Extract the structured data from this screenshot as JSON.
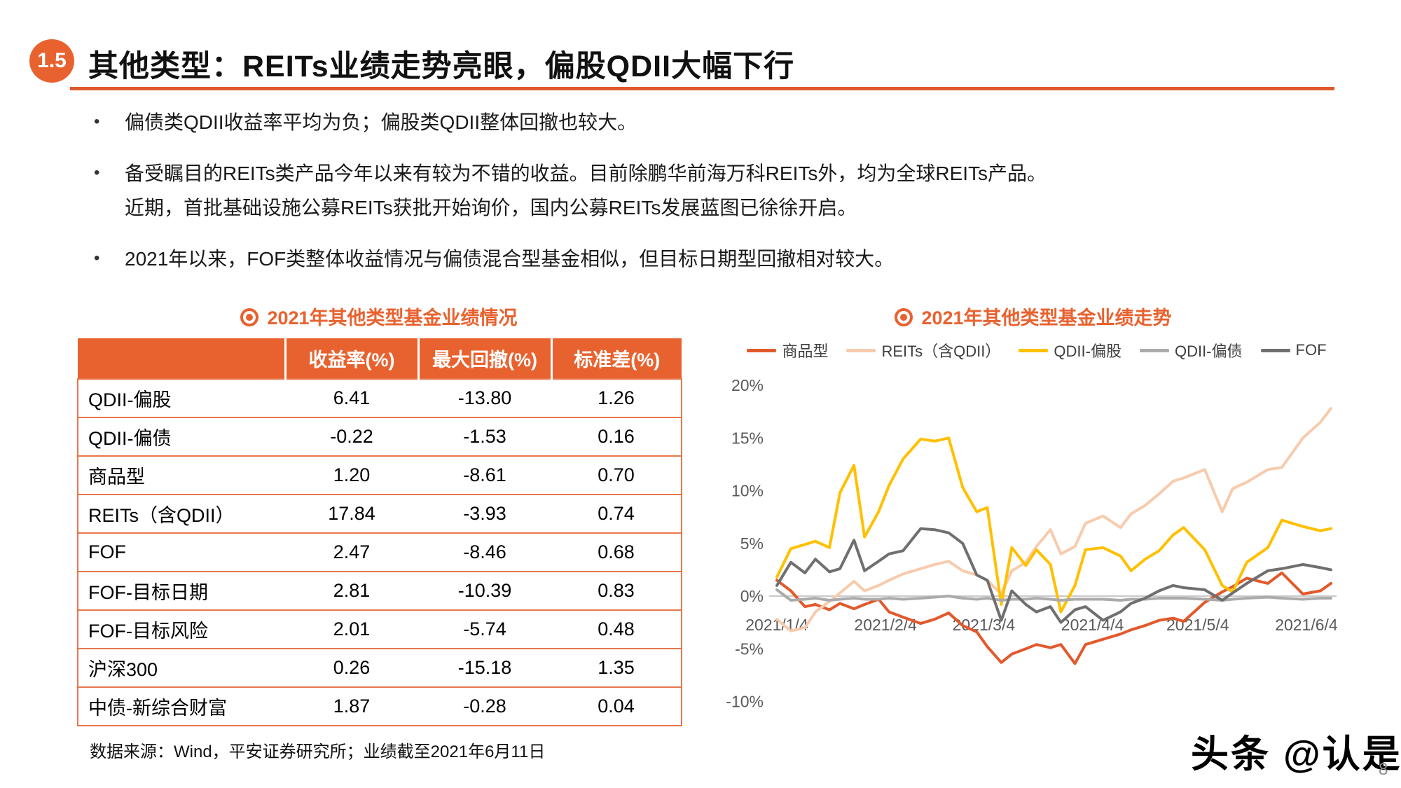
{
  "header": {
    "badge": "1.5",
    "title": "其他类型：REITs业绩走势亮眼，偏股QDII大幅下行"
  },
  "bullets": [
    "偏债类QDII收益率平均为负；偏股类QDII整体回撤也较大。",
    "备受瞩目的REITs类产品今年以来有较为不错的收益。目前除鹏华前海万科REITs外，均为全球REITs产品。近期，首批基础设施公募REITs获批开始询价，国内公募REITs发展蓝图已徐徐开启。",
    "2021年以来，FOF类整体收益情况与偏债混合型基金相似，但目标日期型回撤相对较大。"
  ],
  "table": {
    "title": "2021年其他类型基金业绩情况",
    "columns": [
      "",
      "收益率(%)",
      "最大回撤(%)",
      "标准差(%)"
    ],
    "rows": [
      {
        "label": "QDII-偏股",
        "indent": false,
        "values": [
          "6.41",
          "-13.80",
          "1.26"
        ]
      },
      {
        "label": "QDII-偏债",
        "indent": false,
        "values": [
          "-0.22",
          "-1.53",
          "0.16"
        ]
      },
      {
        "label": "商品型",
        "indent": false,
        "values": [
          "1.20",
          "-8.61",
          "0.70"
        ]
      },
      {
        "label": "REITs（含QDII）",
        "indent": false,
        "values": [
          "17.84",
          "-3.93",
          "0.74"
        ]
      },
      {
        "label": "FOF",
        "indent": false,
        "values": [
          "2.47",
          "-8.46",
          "0.68"
        ]
      },
      {
        "label": "FOF-目标日期",
        "indent": true,
        "values": [
          "2.81",
          "-10.39",
          "0.83"
        ]
      },
      {
        "label": "FOF-目标风险",
        "indent": true,
        "values": [
          "2.01",
          "-5.74",
          "0.48"
        ]
      },
      {
        "label": "沪深300",
        "indent": false,
        "values": [
          "0.26",
          "-15.18",
          "1.35"
        ]
      },
      {
        "label": "中债-新综合财富",
        "indent": false,
        "values": [
          "1.87",
          "-0.28",
          "0.04"
        ]
      }
    ]
  },
  "source_note": "数据来源：Wind，平安证券研究所；业绩截至2021年6月11日",
  "chart_data": {
    "type": "line",
    "title": "2021年其他类型基金业绩走势",
    "x": [
      "1/4",
      "1/8",
      "1/12",
      "1/15",
      "1/19",
      "1/22",
      "1/26",
      "1/29",
      "2/2",
      "2/5",
      "2/9",
      "2/14",
      "2/18",
      "2/22",
      "2/26",
      "3/2",
      "3/5",
      "3/9",
      "3/12",
      "3/16",
      "3/19",
      "3/23",
      "3/26",
      "3/30",
      "4/2",
      "4/7",
      "4/12",
      "4/15",
      "4/19",
      "4/23",
      "4/27",
      "4/30",
      "5/6",
      "5/11",
      "5/14",
      "5/18",
      "5/24",
      "5/28",
      "6/3",
      "6/8",
      "6/11"
    ],
    "series": [
      {
        "name": "商品型",
        "color": "#e2592c",
        "values": [
          1.5,
          0.5,
          -1.0,
          -0.8,
          -1.3,
          -0.7,
          -1.2,
          -0.8,
          -0.3,
          -1.5,
          -2.0,
          -2.6,
          -2.2,
          -1.6,
          -2.8,
          -3.4,
          -4.8,
          -6.3,
          -5.5,
          -5.0,
          -4.6,
          -4.9,
          -4.6,
          -6.4,
          -4.6,
          -4.1,
          -3.6,
          -3.2,
          -2.8,
          -2.3,
          -2.1,
          -2.4,
          -0.6,
          0.4,
          0.9,
          1.7,
          1.2,
          2.2,
          0.2,
          0.5,
          1.2
        ]
      },
      {
        "name": "REITs（含QDII）",
        "color": "#f7cbad",
        "values": [
          -2.2,
          -3.3,
          -3.0,
          -1.5,
          -0.5,
          0.3,
          1.4,
          0.5,
          1.0,
          1.5,
          2.1,
          2.6,
          3.0,
          3.3,
          2.4,
          2.0,
          1.5,
          0.2,
          2.4,
          3.2,
          4.7,
          6.3,
          4.0,
          4.7,
          6.9,
          7.6,
          6.5,
          7.8,
          8.6,
          9.7,
          10.9,
          11.2,
          12.0,
          8.0,
          10.2,
          10.8,
          12.0,
          12.2,
          15.0,
          16.5,
          17.8
        ]
      },
      {
        "name": "QDII-偏股",
        "color": "#ffc000",
        "values": [
          1.8,
          4.5,
          4.9,
          5.2,
          4.6,
          9.8,
          12.4,
          5.6,
          8.0,
          10.5,
          13.0,
          14.9,
          14.7,
          15.0,
          10.3,
          8.0,
          8.4,
          -0.8,
          4.6,
          2.9,
          4.4,
          3.0,
          -1.5,
          1.0,
          4.4,
          4.6,
          3.8,
          2.4,
          3.5,
          4.3,
          5.8,
          6.5,
          4.4,
          1.0,
          0.4,
          3.2,
          4.6,
          7.2,
          6.6,
          6.2,
          6.4
        ]
      },
      {
        "name": "QDII-偏债",
        "color": "#ababab",
        "values": [
          0.6,
          -0.4,
          -0.3,
          -0.2,
          -0.4,
          -0.3,
          -0.2,
          -0.3,
          -0.3,
          -0.2,
          -0.3,
          -0.2,
          -0.1,
          0.0,
          -0.2,
          -0.3,
          -0.2,
          -0.4,
          -0.3,
          -0.3,
          -0.2,
          -0.3,
          -0.4,
          -0.3,
          -0.3,
          -0.3,
          -0.4,
          -0.3,
          -0.3,
          -0.2,
          -0.2,
          -0.2,
          -0.3,
          -0.4,
          -0.3,
          -0.2,
          -0.1,
          -0.2,
          -0.3,
          -0.2,
          -0.2
        ]
      },
      {
        "name": "FOF",
        "color": "#6f6f6f",
        "values": [
          1.0,
          3.2,
          2.2,
          3.5,
          2.3,
          2.6,
          5.3,
          2.4,
          3.3,
          4.0,
          4.3,
          6.4,
          6.3,
          6.0,
          5.0,
          2.0,
          1.5,
          -2.3,
          0.5,
          -0.8,
          -1.5,
          -1.0,
          -2.5,
          -1.3,
          -1.0,
          -2.3,
          -1.5,
          -0.7,
          -0.2,
          0.5,
          1.0,
          0.8,
          0.6,
          -0.4,
          0.3,
          1.2,
          2.4,
          2.6,
          3.0,
          2.7,
          2.5
        ]
      }
    ],
    "ylim": [
      -10,
      20
    ],
    "yticks": [
      "20%",
      "15%",
      "10%",
      "5%",
      "0%",
      "-5%",
      "-10%"
    ],
    "xticks": [
      "2021/1/4",
      "2021/2/4",
      "2021/3/4",
      "2021/4/4",
      "2021/5/4",
      "2021/6/4"
    ],
    "legend_position": "top",
    "grid": false
  },
  "watermark": "头条 @认是",
  "page_number": "8",
  "colors": {
    "accent": "#e8622f",
    "table_border": "#e8764b",
    "axis_label": "#595959",
    "zero_line": "#cacaca"
  }
}
